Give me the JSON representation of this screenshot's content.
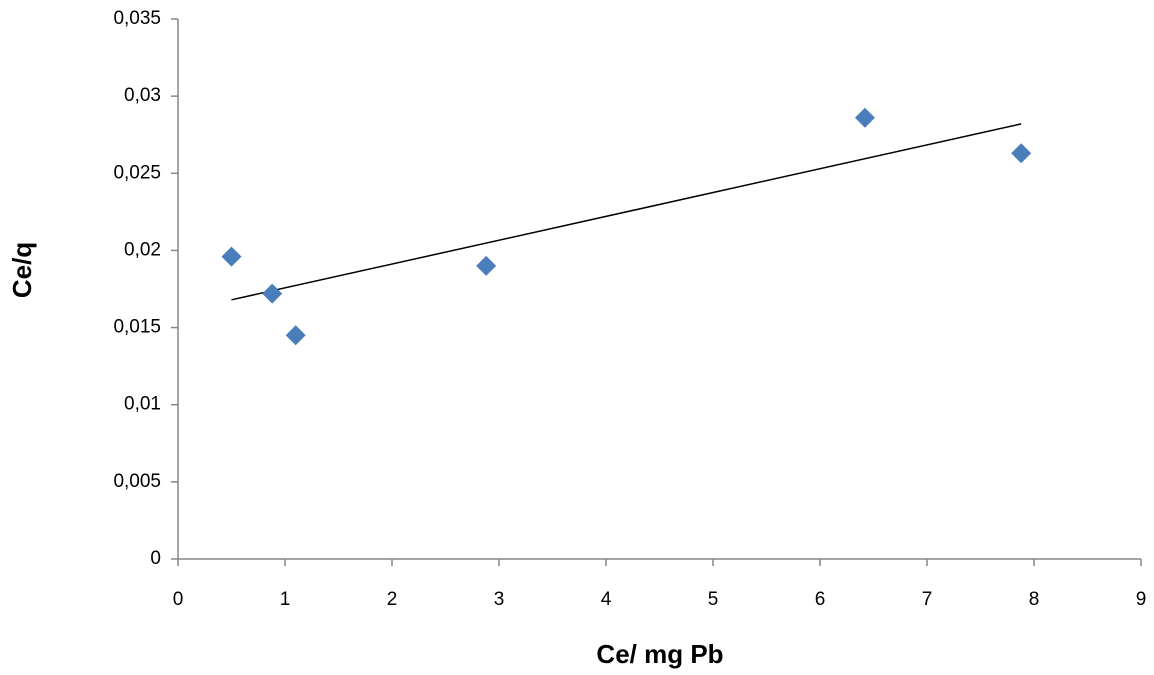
{
  "chart_data": {
    "type": "scatter",
    "x_label": "Ce/ mg Pb",
    "y_label": "Ce/q",
    "series": [
      {
        "color": "#4a7ebb",
        "x": [
          0.5,
          0.88,
          1.1,
          2.88,
          6.42,
          7.88
        ],
        "values": [
          0.0196,
          0.0172,
          0.0145,
          0.019,
          0.0286,
          0.0263
        ]
      }
    ],
    "trendline": {
      "color": "#000000",
      "x": [
        0.5,
        7.88
      ],
      "values": [
        0.0168,
        0.0282
      ]
    },
    "xlim": [
      0,
      9
    ],
    "xticks": [
      0,
      1,
      2,
      3,
      4,
      5,
      6,
      7,
      8,
      9
    ],
    "ylim": [
      0,
      0.035
    ],
    "yticks": [
      0,
      {
        "value": 0.005,
        "label": "0,005"
      },
      {
        "value": 0.01,
        "label": "0,01"
      },
      {
        "value": 0.015,
        "label": "0,015"
      },
      {
        "value": 0.02,
        "label": "0,02"
      },
      {
        "value": 0.025,
        "label": "0,025"
      },
      {
        "value": 0.03,
        "label": "0,03"
      },
      {
        "value": 0.035,
        "label": "0,035"
      }
    ],
    "grid": false
  }
}
